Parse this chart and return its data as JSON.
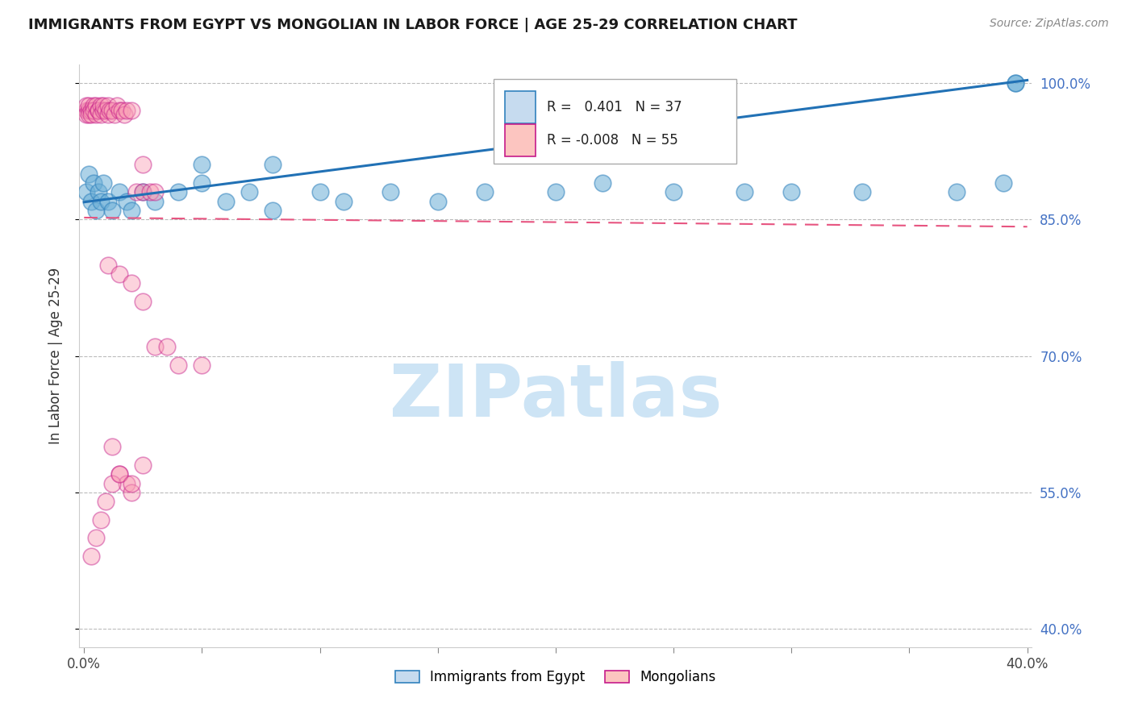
{
  "title": "IMMIGRANTS FROM EGYPT VS MONGOLIAN IN LABOR FORCE | AGE 25-29 CORRELATION CHART",
  "source": "Source: ZipAtlas.com",
  "ylabel": "In Labor Force | Age 25-29",
  "xlim": [
    -0.002,
    0.402
  ],
  "ylim": [
    0.38,
    1.02
  ],
  "xticks": [
    0.0,
    0.05,
    0.1,
    0.15,
    0.2,
    0.25,
    0.3,
    0.35,
    0.4
  ],
  "yticks": [
    0.4,
    0.55,
    0.7,
    0.85,
    1.0
  ],
  "yticklabels": [
    "40.0%",
    "55.0%",
    "70.0%",
    "85.0%",
    "100.0%"
  ],
  "blue_color": "#6baed6",
  "pink_color": "#fa9fb5",
  "blue_edge_color": "#3182bd",
  "pink_edge_color": "#c51b8a",
  "blue_trend_color": "#2171b5",
  "pink_trend_color": "#e75480",
  "watermark": "ZIPatlas",
  "watermark_color": "#cde4f5",
  "grid_color": "#bbbbbb",
  "egypt_x": [
    0.001,
    0.002,
    0.003,
    0.004,
    0.005,
    0.006,
    0.007,
    0.008,
    0.01,
    0.012,
    0.015,
    0.018,
    0.02,
    0.025,
    0.03,
    0.04,
    0.05,
    0.06,
    0.07,
    0.08,
    0.1,
    0.11,
    0.13,
    0.15,
    0.17,
    0.2,
    0.22,
    0.25,
    0.28,
    0.3,
    0.33,
    0.37,
    0.39,
    0.395,
    0.05,
    0.08,
    0.395
  ],
  "egypt_y": [
    0.88,
    0.9,
    0.87,
    0.89,
    0.86,
    0.88,
    0.87,
    0.89,
    0.87,
    0.86,
    0.88,
    0.87,
    0.86,
    0.88,
    0.87,
    0.88,
    0.89,
    0.87,
    0.88,
    0.86,
    0.88,
    0.87,
    0.88,
    0.87,
    0.88,
    0.88,
    0.89,
    0.88,
    0.88,
    0.88,
    0.88,
    0.88,
    0.89,
    1.0,
    0.91,
    0.91,
    1.0
  ],
  "mongol_x": [
    0.001,
    0.001,
    0.001,
    0.002,
    0.002,
    0.002,
    0.003,
    0.003,
    0.004,
    0.004,
    0.005,
    0.005,
    0.006,
    0.006,
    0.007,
    0.007,
    0.008,
    0.008,
    0.009,
    0.01,
    0.01,
    0.011,
    0.012,
    0.013,
    0.014,
    0.015,
    0.016,
    0.017,
    0.018,
    0.02,
    0.022,
    0.025,
    0.025,
    0.028,
    0.03,
    0.01,
    0.015,
    0.02,
    0.025,
    0.03,
    0.035,
    0.04,
    0.05,
    0.012,
    0.015,
    0.018,
    0.02,
    0.003,
    0.005,
    0.007,
    0.009,
    0.012,
    0.015,
    0.02,
    0.025
  ],
  "mongol_y": [
    0.97,
    0.975,
    0.965,
    0.97,
    0.975,
    0.965,
    0.97,
    0.965,
    0.975,
    0.97,
    0.965,
    0.975,
    0.97,
    0.97,
    0.975,
    0.965,
    0.97,
    0.975,
    0.97,
    0.965,
    0.975,
    0.97,
    0.97,
    0.965,
    0.975,
    0.97,
    0.97,
    0.965,
    0.97,
    0.97,
    0.88,
    0.88,
    0.91,
    0.88,
    0.88,
    0.8,
    0.79,
    0.78,
    0.76,
    0.71,
    0.71,
    0.69,
    0.69,
    0.6,
    0.57,
    0.56,
    0.55,
    0.48,
    0.5,
    0.52,
    0.54,
    0.56,
    0.57,
    0.56,
    0.58
  ]
}
